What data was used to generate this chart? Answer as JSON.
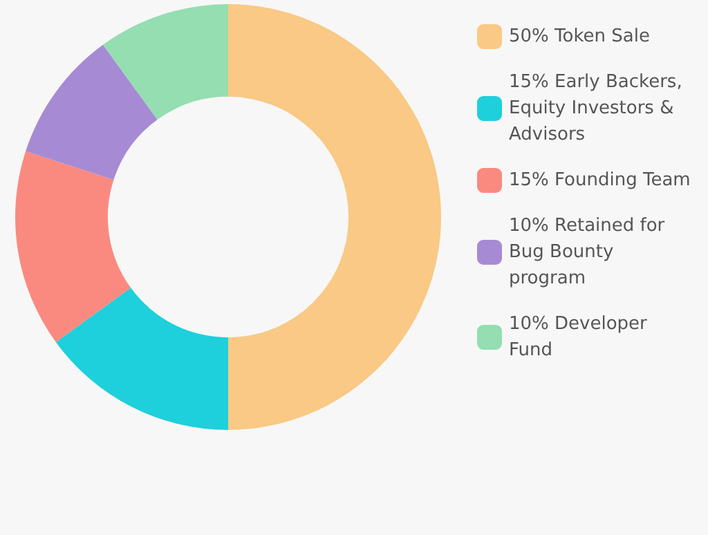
{
  "chart_data": {
    "type": "donut",
    "categories": [
      "50% Token Sale",
      "15% Early Backers, Equity Investors & Advisors",
      "15% Founding Team",
      "10% Retained for Bug Bounty program",
      "10% Developer Fund"
    ],
    "values": [
      50,
      15,
      15,
      10,
      10
    ],
    "colors": [
      "#f9c985",
      "#1dd0dc",
      "#fa8a7f",
      "#a68bd4",
      "#94deb1"
    ],
    "legend": "right"
  }
}
